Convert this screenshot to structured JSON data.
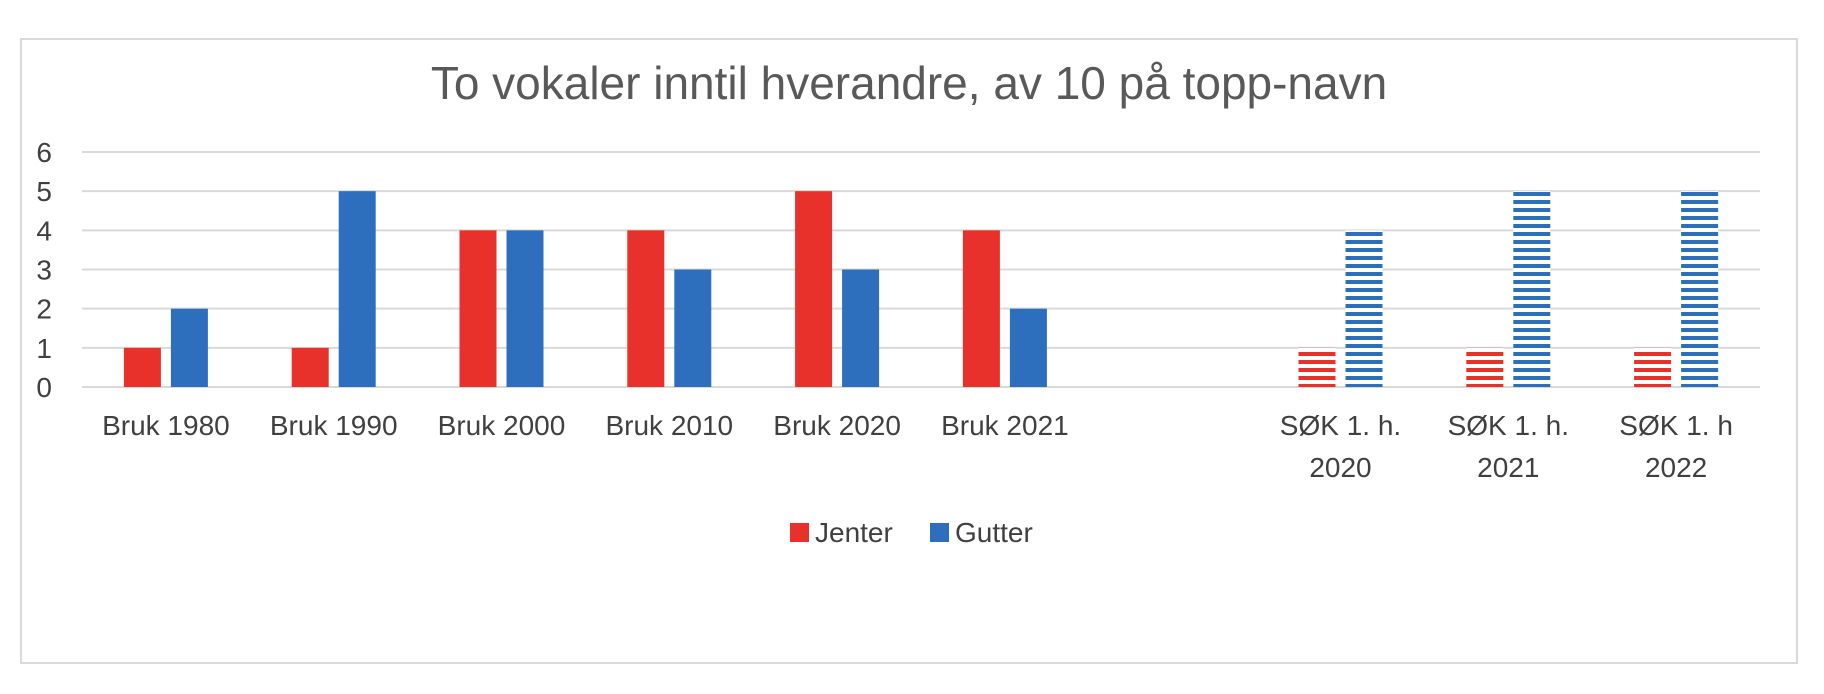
{
  "chart_data": {
    "type": "bar",
    "title": "To vokaler inntil hverandre, av 10 på topp-navn",
    "xlabel": "",
    "ylabel": "",
    "ylim": [
      0,
      6
    ],
    "yticks": [
      0,
      1,
      2,
      3,
      4,
      5,
      6
    ],
    "grid": true,
    "legend_position": "bottom",
    "categories": [
      [
        "Bruk 1980"
      ],
      [
        "Bruk 1990"
      ],
      [
        "Bruk 2000"
      ],
      [
        "Bruk 2010"
      ],
      [
        "Bruk 2020"
      ],
      [
        "Bruk 2021"
      ],
      [
        ""
      ],
      [
        "SØK 1. h.",
        "2020"
      ],
      [
        "SØK 1. h.",
        "2021"
      ],
      [
        "SØK 1. h",
        "2022"
      ]
    ],
    "hatched_categories": [
      7,
      8,
      9
    ],
    "series": [
      {
        "name": "Jenter",
        "color": "#e8312a",
        "values": [
          1,
          1,
          4,
          4,
          5,
          4,
          null,
          1,
          1,
          1
        ]
      },
      {
        "name": "Gutter",
        "color": "#2e6fbd",
        "values": [
          2,
          5,
          4,
          3,
          3,
          2,
          null,
          4,
          5,
          5
        ]
      }
    ]
  }
}
